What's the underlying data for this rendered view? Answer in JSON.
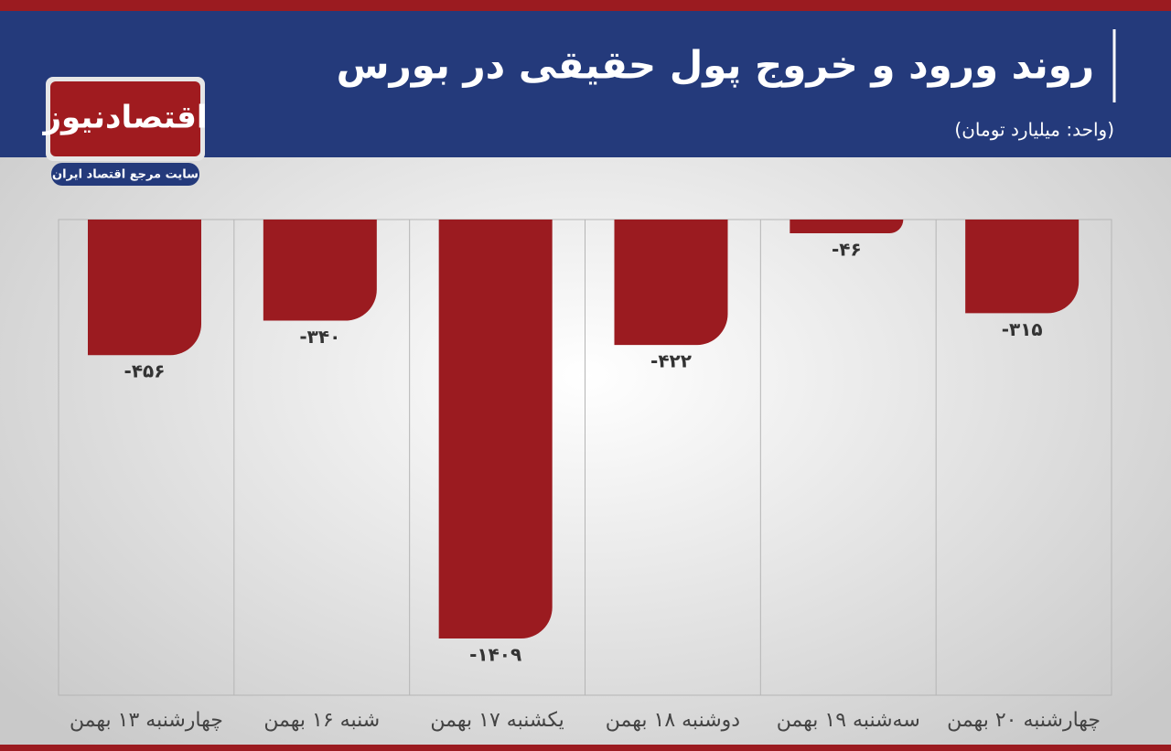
{
  "chart_data": {
    "type": "bar",
    "title": "روند ورود و خروج پول حقیقی در بورس",
    "subtitle": "(واحد: میلیارد تومان)",
    "categories": [
      "چهارشنبه ۱۳ بهمن",
      "شنبه ۱۶ بهمن",
      "یکشنبه ۱۷ بهمن",
      "دوشنبه ۱۸ بهمن",
      "سه‌شنبه ۱۹ بهمن",
      "چهارشنبه ۲۰ بهمن"
    ],
    "values": [
      -456,
      -340,
      -1409,
      -422,
      -46,
      -315
    ],
    "value_labels": [
      "-۴۵۶",
      "-۳۴۰",
      "-۱۴۰۹",
      "-۴۲۲",
      "-۴۶",
      "-۳۱۵"
    ],
    "color": "#9b1b20"
  },
  "logo": {
    "name": "اقتصادنیوز",
    "tagline": "سایت مرجع اقتصاد ایران"
  }
}
